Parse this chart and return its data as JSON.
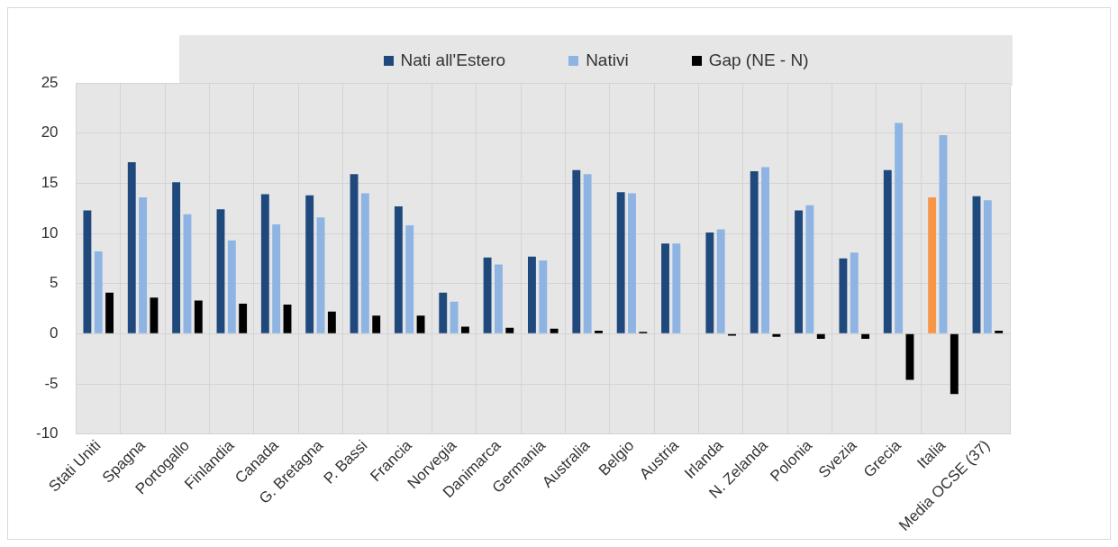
{
  "chart_data": {
    "type": "bar",
    "categories": [
      "Stati Uniti",
      "Spagna",
      "Portogallo",
      "Finlandia",
      "Canada",
      "G. Bretagna",
      "P. Bassi",
      "Francia",
      "Norvegia",
      "Danimarca",
      "Germania",
      "Australia",
      "Belgio",
      "Austria",
      "Irlanda",
      "N. Zelanda",
      "Polonia",
      "Svezia",
      "Grecia",
      "Italia",
      "Media OCSE (37)"
    ],
    "series": [
      {
        "name": "Nati all'Estero",
        "color": "#1f497d",
        "colors": [
          "#1f497d",
          "#1f497d",
          "#1f497d",
          "#1f497d",
          "#1f497d",
          "#1f497d",
          "#1f497d",
          "#1f497d",
          "#1f497d",
          "#1f497d",
          "#1f497d",
          "#1f497d",
          "#1f497d",
          "#1f497d",
          "#1f497d",
          "#1f497d",
          "#1f497d",
          "#1f497d",
          "#1f497d",
          "#f79646",
          "#1f497d"
        ],
        "values": [
          12.3,
          17.1,
          15.1,
          12.4,
          13.9,
          13.8,
          15.9,
          12.7,
          4.1,
          7.6,
          7.7,
          16.3,
          14.1,
          9.0,
          10.1,
          16.2,
          12.3,
          7.5,
          16.3,
          13.6,
          13.7
        ]
      },
      {
        "name": "Nativi",
        "color": "#8db4e2",
        "values": [
          8.2,
          13.6,
          11.9,
          9.3,
          10.9,
          11.6,
          14.0,
          10.8,
          3.2,
          6.9,
          7.3,
          15.9,
          14.0,
          9.0,
          10.4,
          16.6,
          12.8,
          8.1,
          21.0,
          19.8,
          13.3
        ]
      },
      {
        "name": "Gap (NE - N)",
        "color": "#000000",
        "values": [
          4.1,
          3.6,
          3.3,
          3.0,
          2.9,
          2.2,
          1.8,
          1.8,
          0.7,
          0.6,
          0.5,
          0.3,
          0.2,
          0.0,
          -0.2,
          -0.3,
          -0.5,
          -0.5,
          -4.6,
          -6.0,
          0.3
        ]
      }
    ],
    "ylim": [
      -10,
      25
    ],
    "yticks": [
      -10,
      -5,
      0,
      5,
      10,
      15,
      20,
      25
    ],
    "grid": true,
    "legend": "top"
  }
}
